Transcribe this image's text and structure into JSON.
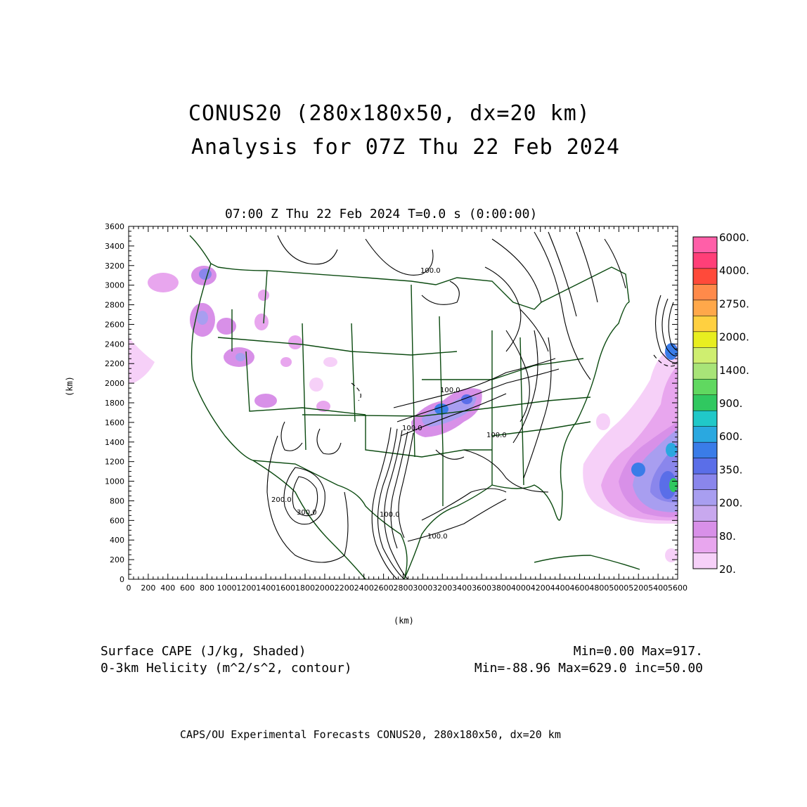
{
  "title": {
    "line1": "CONUS20 (280x180x50, dx=20 km)",
    "line2": "Analysis for 07Z Thu 22 Feb 2024"
  },
  "subtitle": "07:00 Z Thu 22 Feb 2024   T=0.0 s (0:00:00)",
  "chart_data": {
    "type": "map",
    "xlabel": "(km)",
    "ylabel": "(km)",
    "xlim": [
      0,
      5600
    ],
    "ylim": [
      0,
      3600
    ],
    "x_ticks": [
      "0",
      "200",
      "400",
      "600",
      "800",
      "1000",
      "1200",
      "1400",
      "1600",
      "1800",
      "2000",
      "2200",
      "2400",
      "2600",
      "2800",
      "3000",
      "3200",
      "3400",
      "3600",
      "3800",
      "4000",
      "4200",
      "4400",
      "4600",
      "4800",
      "5000",
      "5200",
      "5400",
      "5600"
    ],
    "y_ticks": [
      "0",
      "200",
      "400",
      "600",
      "800",
      "1000",
      "1200",
      "1400",
      "1600",
      "1800",
      "2000",
      "2200",
      "2400",
      "2600",
      "2800",
      "3000",
      "3200",
      "3400",
      "3600"
    ],
    "colorbar": {
      "labels": [
        "6000.",
        "4000.",
        "2750.",
        "2000.",
        "1400.",
        "900.",
        "600.",
        "350.",
        "200.",
        "80.",
        "20."
      ],
      "colors": [
        "#ff5fa8",
        "#ff3f78",
        "#ff4a3a",
        "#ff8a4a",
        "#ffa84a",
        "#ffd040",
        "#e8ee20",
        "#cfee70",
        "#a8e478",
        "#60d860",
        "#30c860",
        "#20c8c8",
        "#2aa8e0",
        "#3a7ce8",
        "#5a6ee8",
        "#8a86ec",
        "#a89ef0",
        "#c8a8ee",
        "#d890e8",
        "#e8a6ee",
        "#f6d0f8"
      ]
    },
    "contour_labels": [
      "100.0",
      "100.0",
      "100.0",
      "300.0",
      "200.0",
      "100.0",
      "100.0",
      "100.0"
    ]
  },
  "legend": {
    "shaded_label": "Surface CAPE (J/kg, Shaded)",
    "shaded_stats": "Min=0.00 Max=917.",
    "contour_label": "0-3km Helicity (m^2/s^2, contour)",
    "contour_stats": "Min=-88.96 Max=629.0 inc=50.00"
  },
  "footer": "CAPS/OU Experimental Forecasts  CONUS20, 280x180x50, dx=20 km"
}
